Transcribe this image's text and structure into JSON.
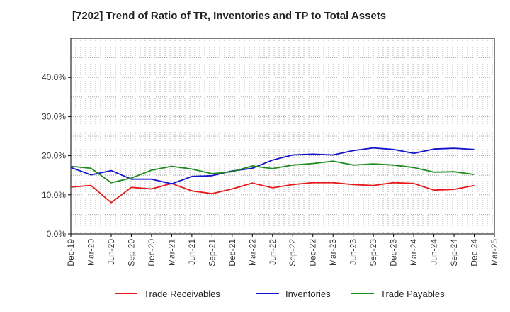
{
  "chart_data": {
    "type": "line",
    "title": "[7202]  Trend of Ratio of TR, Inventories and TP to Total Assets",
    "xlabel": "",
    "ylabel": "",
    "x_tick_labels": [
      "Dec-19",
      "Mar-20",
      "Jun-20",
      "Sep-20",
      "Dec-20",
      "Mar-21",
      "Jun-21",
      "Sep-21",
      "Dec-21",
      "Mar-22",
      "Jun-22",
      "Sep-22",
      "Dec-22",
      "Mar-23",
      "Jun-23",
      "Sep-23",
      "Dec-23",
      "Mar-24",
      "Jun-24",
      "Sep-24",
      "Dec-24",
      "Mar-25"
    ],
    "x": [
      "Dec-19",
      "Mar-20",
      "Jun-20",
      "Sep-20",
      "Dec-20",
      "Mar-21",
      "Jun-21",
      "Sep-21",
      "Dec-21",
      "Mar-22",
      "Jun-22",
      "Sep-22",
      "Dec-22",
      "Mar-23",
      "Jun-23",
      "Sep-23",
      "Dec-23",
      "Mar-24",
      "Jun-24",
      "Sep-24",
      "Dec-24"
    ],
    "ylim": [
      0,
      50
    ],
    "y_ticks": [
      0,
      10,
      20,
      30,
      40
    ],
    "y_tick_labels": [
      "0.0%",
      "10.0%",
      "20.0%",
      "30.0%",
      "40.0%"
    ],
    "grid": true,
    "legend_position": "bottom",
    "series": [
      {
        "name": "Trade Receivables",
        "color": "#e8191b",
        "values": [
          12.0,
          12.4,
          8.0,
          11.9,
          11.5,
          12.9,
          11.0,
          10.3,
          11.5,
          13.0,
          11.8,
          12.6,
          13.1,
          13.1,
          12.6,
          12.4,
          13.1,
          12.9,
          11.2,
          11.4,
          12.4
        ]
      },
      {
        "name": "Inventories",
        "color": "#1414cc",
        "values": [
          17.0,
          15.1,
          16.2,
          14.0,
          14.0,
          12.8,
          14.7,
          14.9,
          16.1,
          16.8,
          18.9,
          20.2,
          20.4,
          20.2,
          21.3,
          22.0,
          21.6,
          20.6,
          21.7,
          21.9,
          21.6
        ]
      },
      {
        "name": "Trade Payables",
        "color": "#1e8c1e",
        "values": [
          17.3,
          16.8,
          13.1,
          14.3,
          16.3,
          17.3,
          16.6,
          15.4,
          15.9,
          17.4,
          16.7,
          17.6,
          18.0,
          18.6,
          17.6,
          17.9,
          17.6,
          17.0,
          15.8,
          15.9,
          15.2
        ]
      }
    ]
  }
}
